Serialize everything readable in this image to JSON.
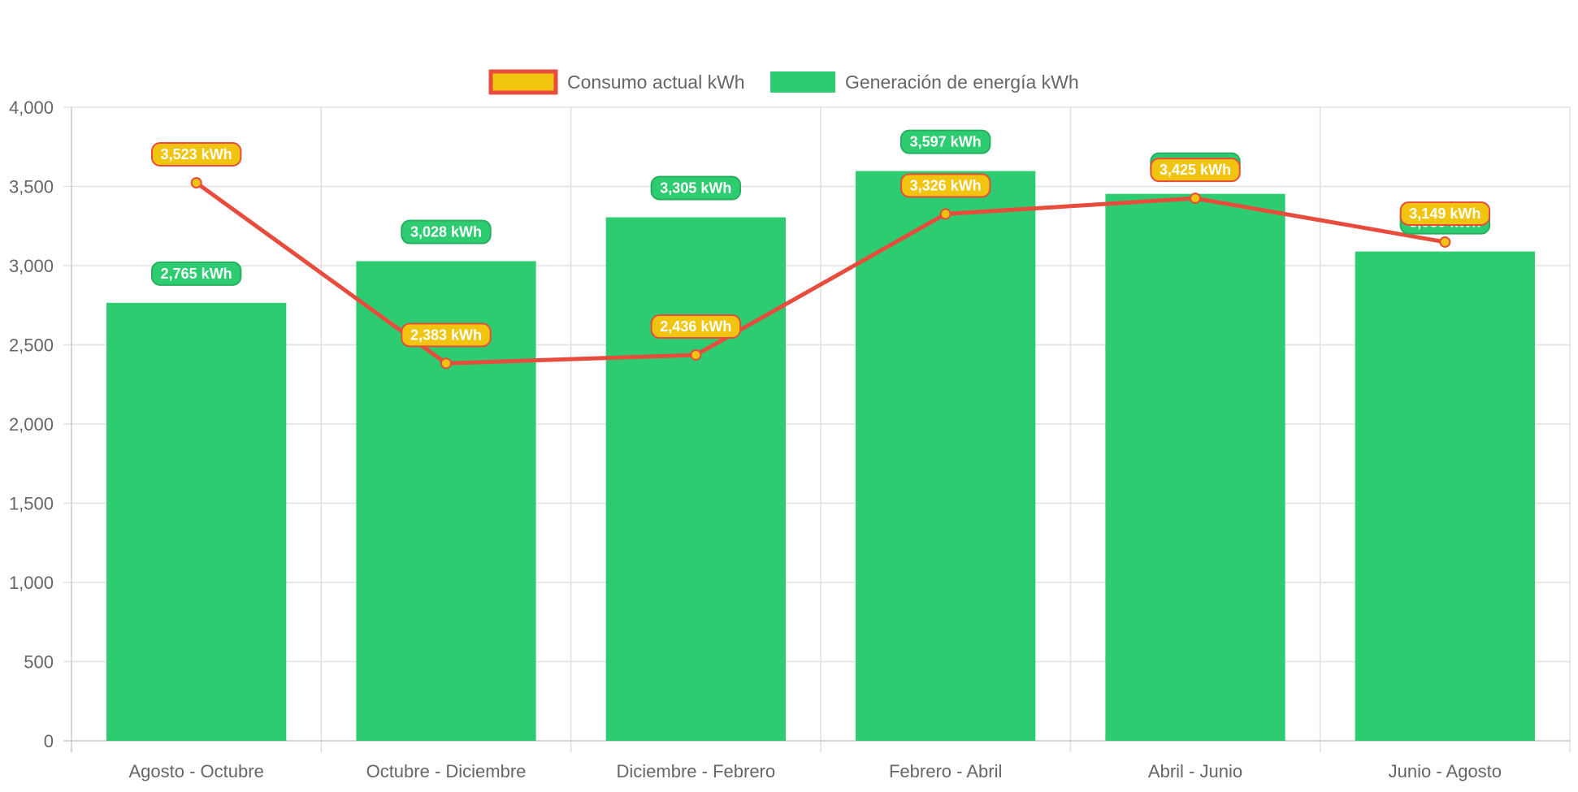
{
  "chart_data": {
    "type": "bar",
    "categories": [
      "Agosto - Octubre",
      "Octubre - Diciembre",
      "Diciembre - Febrero",
      "Febrero - Abril",
      "Abril - Junio",
      "Junio - Agosto"
    ],
    "ylim": [
      0,
      4000
    ],
    "yticks": [
      0,
      500,
      1000,
      1500,
      2000,
      2500,
      3000,
      3500,
      4000
    ],
    "grid": true,
    "legend_position": "top",
    "series": [
      {
        "name": "Consumo actual kWh",
        "type": "line",
        "values": [
          3523,
          2383,
          2436,
          3326,
          3425,
          3149
        ],
        "labels": [
          "3,523 kWh",
          "2,383 kWh",
          "2,436 kWh",
          "3,326 kWh",
          "3,425 kWh",
          "3,149 kWh"
        ],
        "color": "#e74c3c",
        "fill_color": "#f1c40f"
      },
      {
        "name": "Generación de energía kWh",
        "type": "bar",
        "values": [
          2765,
          3028,
          3305,
          3597,
          3453,
          3089
        ],
        "labels": [
          "2,765 kWh",
          "3,028 kWh",
          "3,305 kWh",
          "3,597 kWh",
          "3,453 kWh",
          "3,089 kWh"
        ],
        "color": "#2ecc71",
        "border_color": "#27ae60"
      }
    ]
  }
}
